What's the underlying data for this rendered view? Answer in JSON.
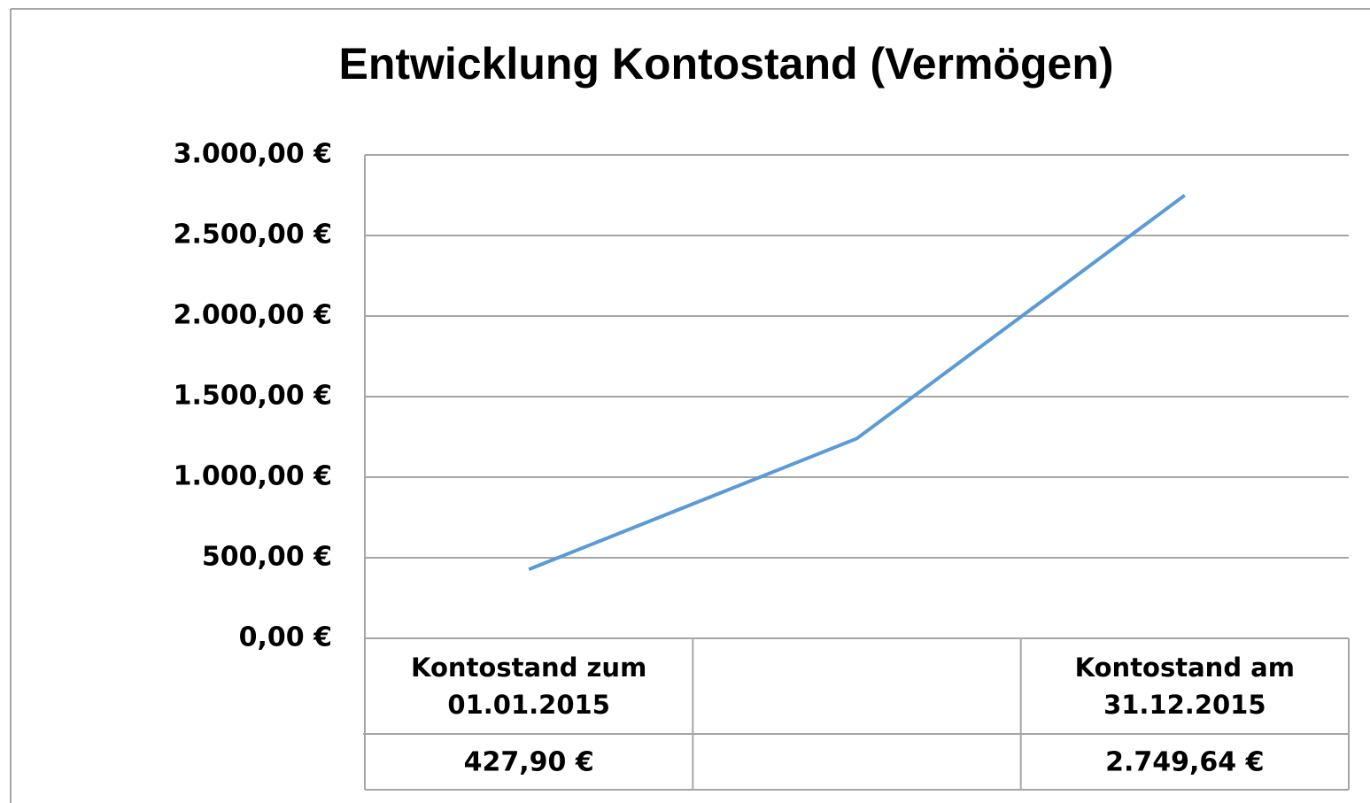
{
  "chart_data": {
    "type": "line",
    "title": "Entwicklung Kontostand (Vermögen)",
    "categories": [
      "Kontostand zum 01.01.2015",
      null,
      "Kontostand am 31.12.2015"
    ],
    "series": [
      {
        "name": "Kontostand",
        "color": "#5b9bd5",
        "values": [
          427.9,
          1240,
          2749.64
        ],
        "value_labels": [
          "427,90 €",
          null,
          "2.749,64 €"
        ]
      }
    ],
    "ylim": [
      0,
      3000
    ],
    "yticks": [
      {
        "value": 0,
        "label": "0,00 €"
      },
      {
        "value": 500,
        "label": "500,00 €"
      },
      {
        "value": 1000,
        "label": "1.000,00 €"
      },
      {
        "value": 1500,
        "label": "1.500,00 €"
      },
      {
        "value": 2000,
        "label": "2.000,00 €"
      },
      {
        "value": 2500,
        "label": "2.500,00 €"
      },
      {
        "value": 3000,
        "label": "3.000,00 €"
      }
    ],
    "grid": true
  }
}
